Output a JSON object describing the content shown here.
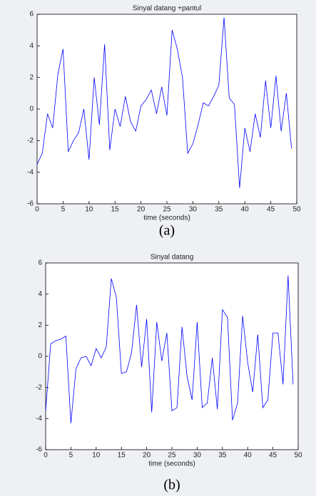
{
  "chart_data": [
    {
      "type": "line",
      "title": "Sinyal datang +pantul",
      "xlabel": "time (seconds)",
      "caption": "(a)",
      "color": "#0000ff",
      "x": [
        0,
        1,
        2,
        3,
        4,
        5,
        6,
        7,
        8,
        9,
        10,
        11,
        12,
        13,
        14,
        15,
        16,
        17,
        18,
        19,
        20,
        21,
        22,
        23,
        24,
        25,
        26,
        27,
        28,
        29,
        30,
        31,
        32,
        33,
        34,
        35,
        36,
        37,
        38,
        39,
        40,
        41,
        42,
        43,
        44,
        45,
        46,
        47,
        48,
        49
      ],
      "values": [
        -3.5,
        -2.8,
        -0.3,
        -1.2,
        2.2,
        3.8,
        -2.7,
        -2,
        -1.5,
        0,
        -3.2,
        2,
        -1,
        4.1,
        -2.6,
        0,
        -1.1,
        0.8,
        -0.8,
        -1.4,
        0.2,
        0.6,
        1.2,
        -0.3,
        1.4,
        -0.4,
        5,
        3.8,
        2,
        -2.8,
        -2.2,
        -1,
        0.4,
        0.2,
        0.8,
        1.5,
        5.8,
        0.7,
        0.3,
        -5,
        -1.2,
        -2.7,
        -0.3,
        -1.8,
        1.8,
        -1.2,
        2.1,
        -1.4,
        1,
        -2.5
      ],
      "xlim": [
        0,
        50
      ],
      "xticks": [
        0,
        5,
        10,
        15,
        20,
        25,
        30,
        35,
        40,
        45,
        50
      ],
      "ylim": [
        -6,
        6
      ],
      "yticks": [
        -6,
        -4,
        -2,
        0,
        2,
        4,
        6
      ]
    },
    {
      "type": "line",
      "title": "Sinyal datang",
      "xlabel": "time (seconds)",
      "caption": "(b)",
      "color": "#0000ff",
      "x": [
        0,
        1,
        2,
        3,
        4,
        5,
        6,
        7,
        8,
        9,
        10,
        11,
        12,
        13,
        14,
        15,
        16,
        17,
        18,
        19,
        20,
        21,
        22,
        23,
        24,
        25,
        26,
        27,
        28,
        29,
        30,
        31,
        32,
        33,
        34,
        35,
        36,
        37,
        38,
        39,
        40,
        41,
        42,
        43,
        44,
        45,
        46,
        47,
        48,
        49
      ],
      "values": [
        -3.5,
        0.8,
        1,
        1.1,
        1.3,
        -4.3,
        -0.8,
        -0.1,
        0,
        -0.6,
        0.5,
        -0.1,
        0.6,
        5,
        3.8,
        -1.1,
        -1,
        0.2,
        3.3,
        -0.7,
        2.4,
        -3.6,
        2.2,
        -0.3,
        1.5,
        -3.5,
        -3.3,
        1.9,
        -1.3,
        -2.8,
        2.2,
        -3.3,
        -3,
        -0.1,
        -3.4,
        3,
        2.5,
        -4.1,
        -3,
        2.6,
        -0.4,
        -2.3,
        1.4,
        -3.3,
        -2.8,
        1.5,
        1.5,
        -1.8,
        5.2,
        -1.8
      ],
      "xlim": [
        0,
        50
      ],
      "xticks": [
        0,
        5,
        10,
        15,
        20,
        25,
        30,
        35,
        40,
        45,
        50
      ],
      "ylim": [
        -6,
        6
      ],
      "yticks": [
        -6,
        -4,
        -2,
        0,
        2,
        4,
        6
      ]
    }
  ]
}
